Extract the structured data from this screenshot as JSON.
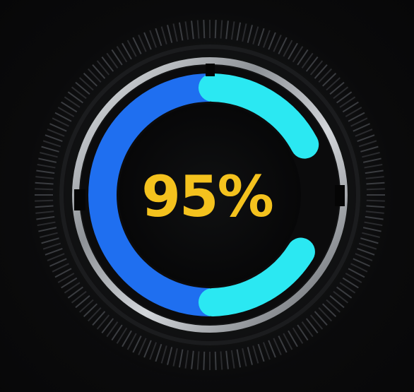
{
  "gauge": {
    "value_text": "95%",
    "value_percent": 95
  },
  "colors": {
    "left_arc": "#1f6ff0",
    "right_arc": "#2be8f2",
    "value_text": "#f4c21e",
    "bezel": "#c9cdd1",
    "background": "#0a0a0b"
  }
}
